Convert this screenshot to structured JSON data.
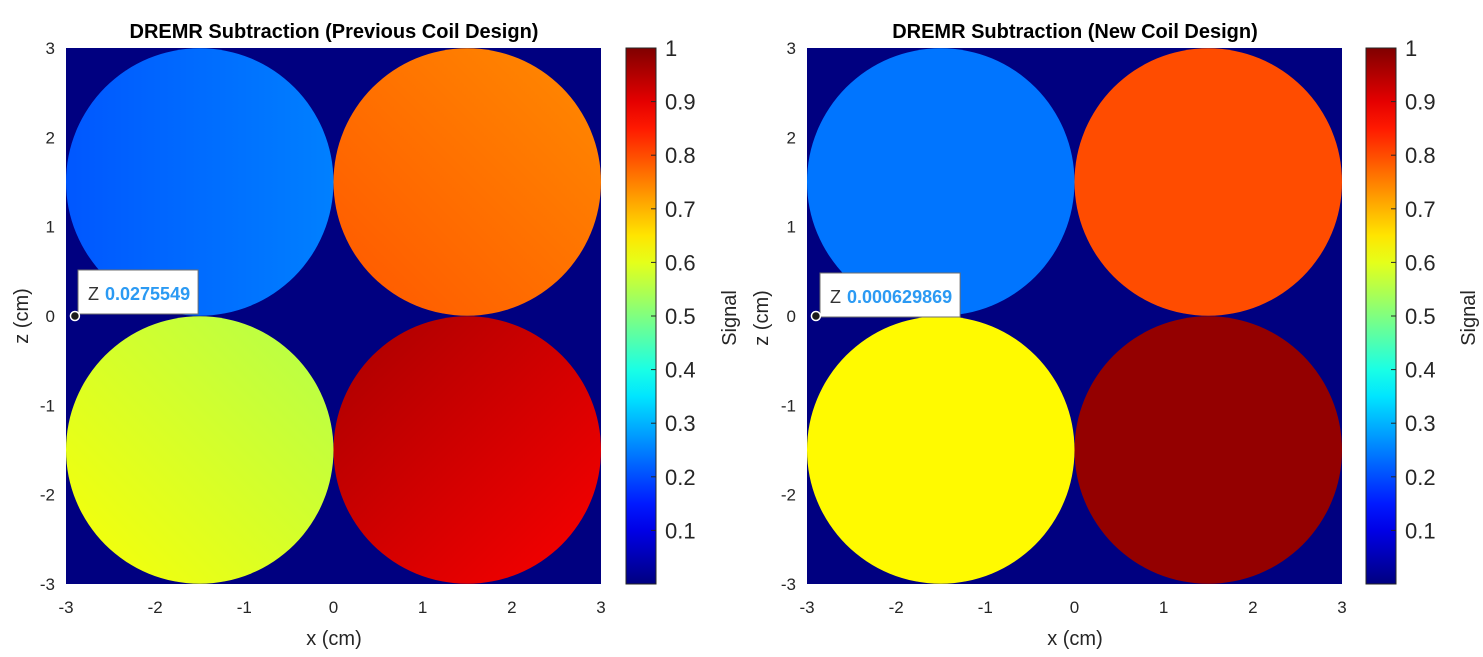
{
  "chart_data": [
    {
      "type": "heatmap",
      "title": "DREMR Subtraction (Previous Coil Design)",
      "xlabel": "x (cm)",
      "ylabel": "z (cm)",
      "xlim": [
        -3,
        3
      ],
      "ylim": [
        -3,
        3
      ],
      "xticks": [
        "-3",
        "-2",
        "-1",
        "0",
        "1",
        "2",
        "3"
      ],
      "yticks": [
        "-3",
        "-2",
        "-1",
        "0",
        "1",
        "2",
        "3"
      ],
      "background_value": 0,
      "disks": [
        {
          "name": "top-left",
          "cx": -1.5,
          "cz": 1.5,
          "r": 1.5,
          "value_low": 0.21,
          "value_high": 0.25,
          "gradient": "left-to-right"
        },
        {
          "name": "top-right",
          "cx": 1.5,
          "cz": 1.5,
          "r": 1.5,
          "value_low": 0.79,
          "value_high": 0.74,
          "gradient": "top-right lighter"
        },
        {
          "name": "bottom-left",
          "cx": -1.5,
          "cz": -1.5,
          "r": 1.5,
          "value_low": 0.55,
          "value_high": 0.62,
          "gradient": "bottom-left lighter"
        },
        {
          "name": "bottom-right",
          "cx": 1.5,
          "cz": -1.5,
          "r": 1.5,
          "value_low": 0.96,
          "value_high": 0.88,
          "gradient": "bottom-right lighter"
        }
      ],
      "datatip": {
        "x": -2.9,
        "z": 0,
        "label": "Z",
        "value": "0.0275549"
      },
      "colorbar": {
        "label": "Signal",
        "colormap": "jet",
        "range": [
          0,
          1
        ],
        "ticks": [
          "0.1",
          "0.2",
          "0.3",
          "0.4",
          "0.5",
          "0.6",
          "0.7",
          "0.8",
          "0.9",
          "1"
        ]
      }
    },
    {
      "type": "heatmap",
      "title": "DREMR Subtraction (New Coil Design)",
      "xlabel": "x (cm)",
      "ylabel": "z (cm)",
      "xlim": [
        -3,
        3
      ],
      "ylim": [
        -3,
        3
      ],
      "xticks": [
        "-3",
        "-2",
        "-1",
        "0",
        "1",
        "2",
        "3"
      ],
      "yticks": [
        "-3",
        "-2",
        "-1",
        "0",
        "1",
        "2",
        "3"
      ],
      "background_value": 0,
      "disks": [
        {
          "name": "top-left",
          "cx": -1.5,
          "cz": 1.5,
          "r": 1.5,
          "value_low": 0.24,
          "value_high": 0.24,
          "gradient": "none"
        },
        {
          "name": "top-right",
          "cx": 1.5,
          "cz": 1.5,
          "r": 1.5,
          "value_low": 0.8,
          "value_high": 0.8,
          "gradient": "none"
        },
        {
          "name": "bottom-left",
          "cx": -1.5,
          "cz": -1.5,
          "r": 1.5,
          "value_low": 0.63,
          "value_high": 0.63,
          "gradient": "none"
        },
        {
          "name": "bottom-right",
          "cx": 1.5,
          "cz": -1.5,
          "r": 1.5,
          "value_low": 0.98,
          "value_high": 0.98,
          "gradient": "none"
        }
      ],
      "datatip": {
        "x": -2.9,
        "z": 0,
        "label": "Z",
        "value": "0.000629869"
      },
      "colorbar": {
        "label": "Signal",
        "colormap": "jet",
        "range": [
          0,
          1
        ],
        "ticks": [
          "0.1",
          "0.2",
          "0.3",
          "0.4",
          "0.5",
          "0.6",
          "0.7",
          "0.8",
          "0.9",
          "1"
        ]
      }
    }
  ]
}
